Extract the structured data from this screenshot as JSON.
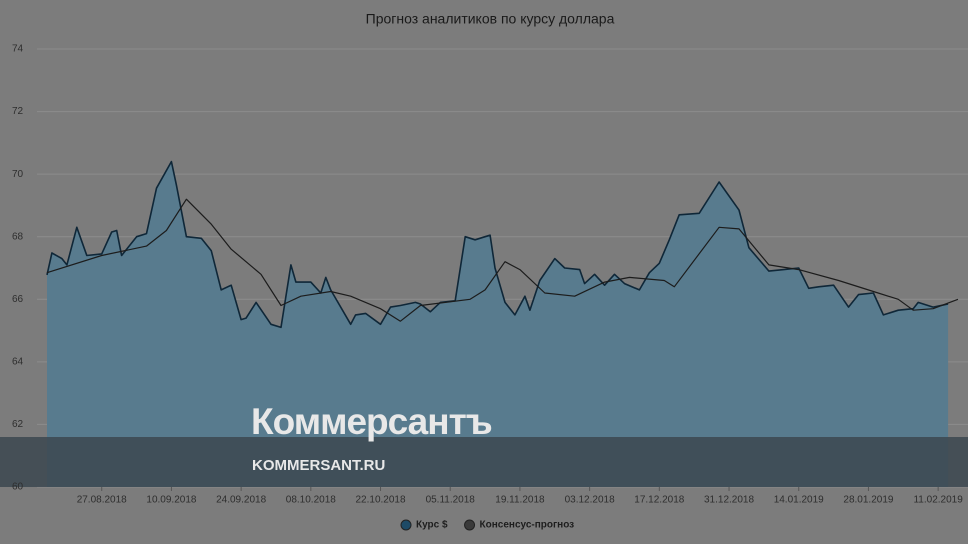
{
  "chart_data": {
    "type": "area",
    "title": "Прогноз аналитиков по курсу доллара",
    "watermark": {
      "brand": "Коммерсантъ",
      "site": "KOMMERSANT.RU"
    },
    "xlim": [
      "2018-08-14",
      "2019-02-17"
    ],
    "ylim": [
      60,
      74
    ],
    "yticks": [
      60,
      62,
      64,
      66,
      68,
      70,
      72,
      74
    ],
    "xticks": [
      {
        "value": "2018-08-27",
        "label": "27.08.2018"
      },
      {
        "value": "2018-09-10",
        "label": "10.09.2018"
      },
      {
        "value": "2018-09-24",
        "label": "24.09.2018"
      },
      {
        "value": "2018-10-08",
        "label": "08.10.2018"
      },
      {
        "value": "2018-10-22",
        "label": "22.10.2018"
      },
      {
        "value": "2018-11-05",
        "label": "05.11.2018"
      },
      {
        "value": "2018-11-19",
        "label": "19.11.2018"
      },
      {
        "value": "2018-12-03",
        "label": "03.12.2018"
      },
      {
        "value": "2018-12-17",
        "label": "17.12.2018"
      },
      {
        "value": "2018-12-31",
        "label": "31.12.2018"
      },
      {
        "value": "2019-01-14",
        "label": "14.01.2019"
      },
      {
        "value": "2019-01-28",
        "label": "28.01.2019"
      },
      {
        "value": "2019-02-11",
        "label": "11.02.2019"
      }
    ],
    "grid": true,
    "series": [
      {
        "name": "Курс $",
        "type": "area",
        "color": "#587b8e",
        "stroke": "#0f2738",
        "legend_color": "#1d4a66",
        "x": [
          "2018-08-16",
          "2018-08-17",
          "2018-08-19",
          "2018-08-20",
          "2018-08-22",
          "2018-08-24",
          "2018-08-27",
          "2018-08-29",
          "2018-08-30",
          "2018-08-31",
          "2018-09-03",
          "2018-09-05",
          "2018-09-07",
          "2018-09-10",
          "2018-09-11",
          "2018-09-13",
          "2018-09-16",
          "2018-09-18",
          "2018-09-20",
          "2018-09-22",
          "2018-09-24",
          "2018-09-25",
          "2018-09-27",
          "2018-09-30",
          "2018-10-02",
          "2018-10-04",
          "2018-10-05",
          "2018-10-08",
          "2018-10-10",
          "2018-10-11",
          "2018-10-12",
          "2018-10-16",
          "2018-10-17",
          "2018-10-19",
          "2018-10-22",
          "2018-10-24",
          "2018-10-26",
          "2018-10-29",
          "2018-10-30",
          "2018-11-01",
          "2018-11-03",
          "2018-11-06",
          "2018-11-08",
          "2018-11-10",
          "2018-11-12",
          "2018-11-13",
          "2018-11-14",
          "2018-11-16",
          "2018-11-18",
          "2018-11-20",
          "2018-11-21",
          "2018-11-23",
          "2018-11-26",
          "2018-11-28",
          "2018-12-01",
          "2018-12-02",
          "2018-12-04",
          "2018-12-06",
          "2018-12-08",
          "2018-12-10",
          "2018-12-13",
          "2018-12-15",
          "2018-12-17",
          "2018-12-19",
          "2018-12-21",
          "2018-12-25",
          "2018-12-29",
          "2019-01-02",
          "2019-01-04",
          "2019-01-08",
          "2019-01-11",
          "2019-01-14",
          "2019-01-16",
          "2019-01-18",
          "2019-01-21",
          "2019-01-24",
          "2019-01-26",
          "2019-01-29",
          "2019-01-31",
          "2019-02-03",
          "2019-02-06",
          "2019-02-07",
          "2019-02-10",
          "2019-02-13"
        ],
        "values": [
          66.78,
          67.48,
          67.3,
          67.1,
          68.3,
          67.4,
          67.45,
          68.15,
          68.2,
          67.4,
          68.0,
          68.1,
          69.55,
          70.4,
          69.65,
          68.0,
          67.95,
          67.55,
          66.3,
          66.45,
          65.35,
          65.4,
          65.9,
          65.2,
          65.1,
          67.1,
          66.55,
          66.55,
          66.2,
          66.7,
          66.3,
          65.2,
          65.5,
          65.55,
          65.2,
          65.75,
          65.8,
          65.9,
          65.85,
          65.6,
          65.9,
          65.95,
          68.0,
          67.9,
          68.0,
          68.05,
          67.0,
          65.9,
          65.5,
          66.1,
          65.65,
          66.6,
          67.3,
          67.0,
          66.95,
          66.5,
          66.8,
          66.45,
          66.8,
          66.5,
          66.3,
          66.85,
          67.15,
          67.9,
          68.7,
          68.75,
          69.75,
          68.85,
          67.65,
          66.9,
          66.95,
          67.0,
          66.35,
          66.4,
          66.45,
          65.75,
          66.15,
          66.2,
          65.5,
          65.65,
          65.7,
          65.9,
          65.75,
          65.85
        ]
      },
      {
        "name": "Консенсус-прогноз",
        "type": "line",
        "color": "#1c1c1c",
        "legend_color": "#3a3a3a",
        "x": [
          "2018-08-16",
          "2018-08-27",
          "2018-09-05",
          "2018-09-09",
          "2018-09-13",
          "2018-09-18",
          "2018-09-22",
          "2018-09-28",
          "2018-10-02",
          "2018-10-06",
          "2018-10-12",
          "2018-10-16",
          "2018-10-22",
          "2018-10-26",
          "2018-10-30",
          "2018-11-09",
          "2018-11-12",
          "2018-11-16",
          "2018-11-19",
          "2018-11-24",
          "2018-11-30",
          "2018-12-06",
          "2018-12-11",
          "2018-12-18",
          "2018-12-20",
          "2018-12-29",
          "2019-01-02",
          "2019-01-08",
          "2019-01-14",
          "2019-01-22",
          "2019-01-29",
          "2019-02-03",
          "2019-02-06",
          "2019-02-10",
          "2019-02-15"
        ],
        "values": [
          66.85,
          67.4,
          67.7,
          68.2,
          69.2,
          68.4,
          67.6,
          66.8,
          65.8,
          66.1,
          66.25,
          66.1,
          65.7,
          65.3,
          65.8,
          66.0,
          66.3,
          67.2,
          66.95,
          66.2,
          66.1,
          66.55,
          66.7,
          66.6,
          66.4,
          68.3,
          68.25,
          67.1,
          66.95,
          66.6,
          66.25,
          66.0,
          65.65,
          65.7,
          66.0
        ]
      }
    ]
  }
}
